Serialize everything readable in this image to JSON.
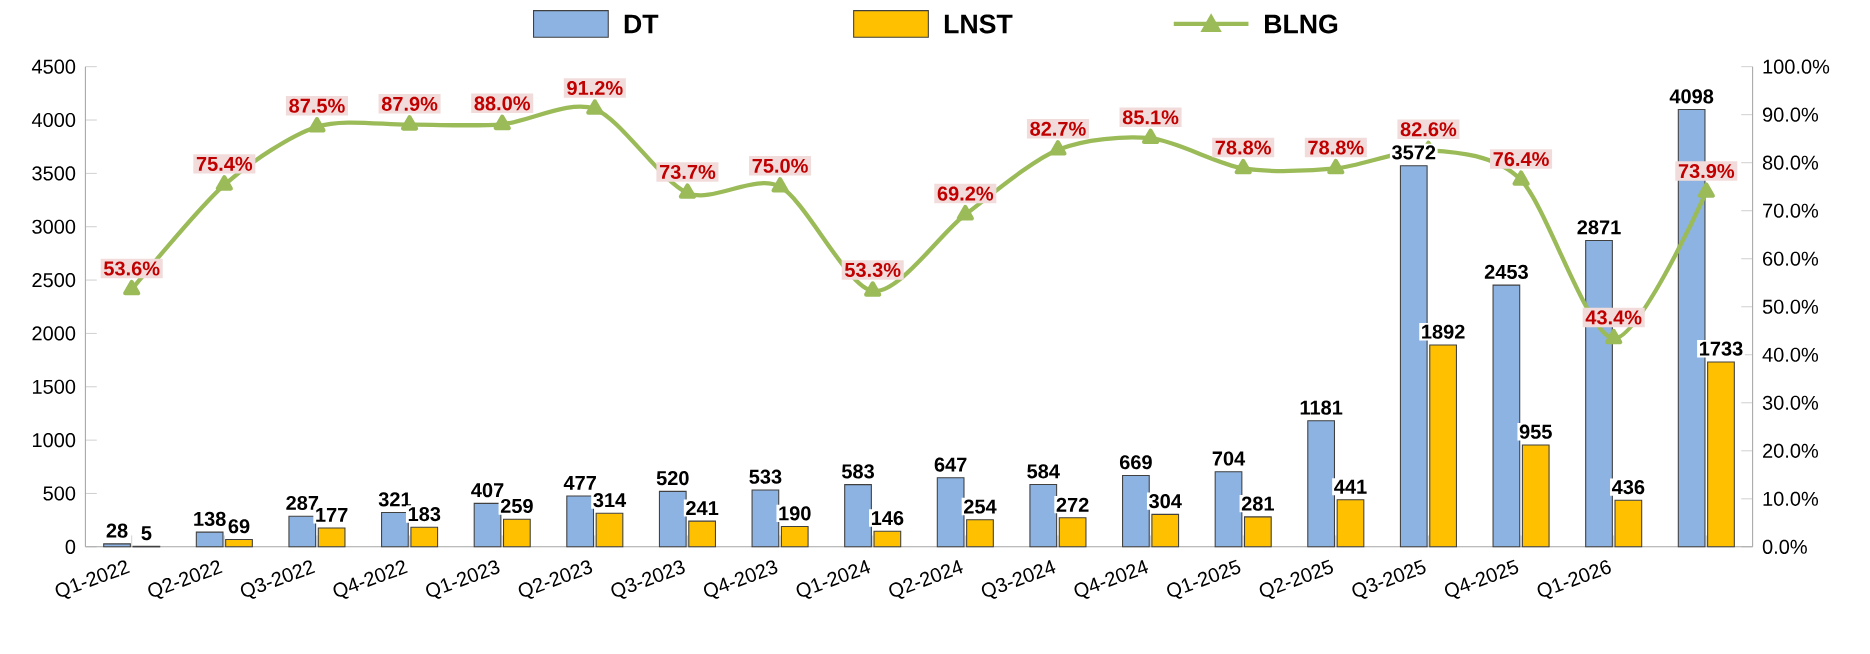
{
  "chart_data": {
    "type": "bar",
    "categories": [
      "Q1-2022",
      "Q2-2022",
      "Q3-2022",
      "Q4-2022",
      "Q1-2023",
      "Q2-2023",
      "Q3-2023",
      "Q4-2023",
      "Q1-2024",
      "Q2-2024",
      "Q3-2024",
      "Q4-2024",
      "Q1-2025",
      "Q2-2025",
      "Q3-2025",
      "Q4-2025",
      "Q1-2026",
      null
    ],
    "series": [
      {
        "name": "DT",
        "color": "#8db3e2",
        "values": [
          28,
          138,
          287,
          321,
          407,
          477,
          520,
          533,
          583,
          647,
          584,
          669,
          704,
          1181,
          3572,
          2453,
          2871,
          4098
        ]
      },
      {
        "name": "LNST",
        "color": "#ffc000",
        "values": [
          5,
          69,
          177,
          183,
          259,
          314,
          241,
          190,
          146,
          254,
          272,
          304,
          281,
          441,
          1892,
          955,
          436,
          1733
        ]
      },
      {
        "name": "BLNG",
        "type": "line",
        "axis": "y2",
        "color": "#9bbb59",
        "marker": "triangle",
        "values": [
          53.6,
          75.4,
          87.5,
          87.9,
          88.0,
          91.2,
          73.7,
          75.0,
          53.3,
          69.2,
          82.7,
          85.1,
          78.8,
          78.8,
          82.6,
          76.4,
          43.4,
          73.9
        ],
        "value_labels": [
          "53.6%",
          "75.4%",
          "87.5%",
          "87.9%",
          "88.0%",
          "91.2%",
          "73.7%",
          "75.0%",
          "53.3%",
          "69.2%",
          "82.7%",
          "85.1%",
          "78.8%",
          "78.8%",
          "82.6%",
          "76.4%",
          "43.4%",
          "73.9%"
        ]
      }
    ],
    "ylim": [
      0,
      4500
    ],
    "yticks": [
      0,
      500,
      1000,
      1500,
      2000,
      2500,
      3000,
      3500,
      4000,
      4500
    ],
    "y2lim": [
      0,
      100
    ],
    "y2ticks": [
      {
        "value": 0,
        "label": "0.0%"
      },
      {
        "value": 10,
        "label": "10.0%"
      },
      {
        "value": 20,
        "label": "20.0%"
      },
      {
        "value": 30,
        "label": "30.0%"
      },
      {
        "value": 40,
        "label": "40.0%"
      },
      {
        "value": 50,
        "label": "50.0%"
      },
      {
        "value": 60,
        "label": "60.0%"
      },
      {
        "value": 70,
        "label": "70.0%"
      },
      {
        "value": 80,
        "label": "80.0%"
      },
      {
        "value": 90,
        "label": "90.0%"
      },
      {
        "value": 100,
        "label": "100.0%"
      }
    ],
    "data_labels": true,
    "legend": "top",
    "grid": false
  }
}
